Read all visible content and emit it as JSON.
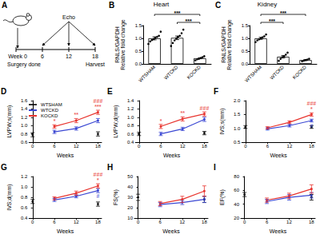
{
  "diagram": {
    "label": "A",
    "week_label": "Week",
    "ticks": [
      "0",
      "6",
      "12",
      "18"
    ],
    "echo": "Echo",
    "start_note": "Surgery done",
    "end_note": "Harvest"
  },
  "chart_data": [
    {
      "label": "B",
      "type": "bar",
      "title": "Heart",
      "ylabel": [
        "RNLS/GAPDH",
        "Relative fold change"
      ],
      "categories": [
        "WTSHAM",
        "WTCKD",
        "KOCKD"
      ],
      "values": [
        1.0,
        1.02,
        0.22
      ],
      "errors": [
        0.06,
        0.07,
        0.02
      ],
      "points": [
        [
          0.78,
          0.88,
          0.93,
          0.97,
          1.02,
          1.06,
          1.1,
          1.26
        ],
        [
          0.7,
          0.82,
          0.92,
          1.0,
          1.06,
          1.1,
          1.2,
          1.34
        ],
        [
          0.14,
          0.18,
          0.2,
          0.23,
          0.26,
          0.3
        ]
      ],
      "colors": [
        "#ffffff",
        "#ffffff",
        "#ffffff"
      ],
      "ylim": [
        0,
        1.5
      ],
      "yticks": [
        {
          "value": 0,
          "label": "0.0"
        },
        0.5,
        {
          "value": 1,
          "label": "1.0"
        },
        1.5
      ],
      "grid": false,
      "comparisons": [
        {
          "from": "WTSHAM",
          "to": "KOCKD",
          "label": "***"
        },
        {
          "from": "WTCKD",
          "to": "KOCKD",
          "label": "***"
        }
      ]
    },
    {
      "label": "C",
      "type": "bar",
      "title": "Kidney",
      "ylabel": [
        "RNLS/GAPDH",
        "Relative fold change"
      ],
      "categories": [
        "WTSHAM",
        "WTCKD",
        "KOCKD"
      ],
      "values": [
        1.0,
        0.28,
        0.15
      ],
      "errors": [
        0.04,
        0.05,
        0.02
      ],
      "points": [
        [
          0.85,
          0.92,
          0.96,
          1.0,
          1.04,
          1.08,
          1.15
        ],
        [
          0.12,
          0.2,
          0.26,
          0.3,
          0.36,
          0.44
        ],
        [
          0.1,
          0.13,
          0.15,
          0.17,
          0.2
        ]
      ],
      "colors": [
        "#ffffff",
        "#ffffff",
        "#ffffff"
      ],
      "ylim": [
        0,
        1.5
      ],
      "yticks": [
        {
          "value": 0,
          "label": "0.0"
        },
        0.5,
        {
          "value": 1,
          "label": "1.0"
        },
        1.5
      ],
      "grid": false,
      "comparisons": [
        {
          "from": "WTSHAM",
          "to": "KOCKD",
          "label": "***"
        },
        {
          "from": "WTSHAM",
          "to": "WTCKD",
          "label": "***"
        }
      ]
    },
    {
      "label": "D",
      "type": "line",
      "xlabel": "Weeks",
      "ylabel": "LVPW;s(mm)",
      "x": [
        0,
        6,
        12,
        18
      ],
      "xlim": [
        -1,
        19
      ],
      "xticks": [
        0,
        6,
        12,
        18
      ],
      "ylim": [
        0.6,
        1.6
      ],
      "yticks": [
        0.6,
        0.8,
        {
          "value": 1,
          "label": "1.0"
        },
        1.2,
        1.4,
        1.6
      ],
      "grid": false,
      "legend": "upper left",
      "series": [
        {
          "name": "WTSHAM",
          "color": "#000000",
          "type": "scatter",
          "values": [
            0.78,
            null,
            null,
            0.8
          ],
          "errors": [
            0.05,
            null,
            null,
            0.05
          ]
        },
        {
          "name": "WTCKD",
          "color": "#3b48d3",
          "values": [
            null,
            0.85,
            0.93,
            1.12
          ],
          "errors": [
            null,
            0.04,
            0.04,
            0.05
          ]
        },
        {
          "name": "KOCKD",
          "color": "#e8342e",
          "values": [
            null,
            0.98,
            1.12,
            1.32
          ],
          "errors": [
            null,
            0.04,
            0.05,
            0.05
          ]
        }
      ],
      "annotations": [
        {
          "series": "KOCKD",
          "x": 6,
          "text": "*"
        },
        {
          "series": "KOCKD",
          "x": 12,
          "text": "**"
        },
        {
          "series": "KOCKD",
          "x": 18,
          "text": "***"
        },
        {
          "series": "KOCKD",
          "x": 18,
          "text": "###"
        }
      ]
    },
    {
      "label": "E",
      "type": "line",
      "xlabel": "Weeks",
      "ylabel": "LVPW;d(mm)",
      "x": [
        0,
        6,
        12,
        18
      ],
      "xlim": [
        -1,
        19
      ],
      "xticks": [
        0,
        6,
        12,
        18
      ],
      "ylim": [
        0.4,
        1.4
      ],
      "yticks": [
        0.4,
        0.6,
        0.8,
        {
          "value": 1,
          "label": "1.0"
        },
        1.2,
        1.4
      ],
      "grid": false,
      "series": [
        {
          "name": "WTSHAM",
          "color": "#000000",
          "type": "scatter",
          "values": [
            0.6,
            null,
            null,
            0.62
          ],
          "errors": [
            0.04,
            null,
            null,
            0.04
          ]
        },
        {
          "name": "WTCKD",
          "color": "#3b48d3",
          "values": [
            null,
            0.6,
            0.72,
            0.95
          ],
          "errors": [
            null,
            0.04,
            0.04,
            0.05
          ]
        },
        {
          "name": "KOCKD",
          "color": "#e8342e",
          "values": [
            null,
            0.78,
            0.96,
            1.08
          ],
          "errors": [
            null,
            0.05,
            0.05,
            0.05
          ]
        }
      ],
      "annotations": [
        {
          "series": "KOCKD",
          "x": 6,
          "text": "*"
        },
        {
          "series": "KOCKD",
          "x": 12,
          "text": "**"
        },
        {
          "series": "KOCKD",
          "x": 18,
          "text": "###"
        }
      ]
    },
    {
      "label": "F",
      "type": "line",
      "xlabel": "Weeks",
      "ylabel": "IVS;s(mm)",
      "x": [
        0,
        6,
        12,
        18
      ],
      "xlim": [
        -1,
        19
      ],
      "xticks": [
        0,
        6,
        12,
        18
      ],
      "ylim": [
        0.5,
        2.0
      ],
      "yticks": [
        0.5,
        {
          "value": 1,
          "label": "1.0"
        },
        1.5,
        {
          "value": 2,
          "label": "2.0"
        }
      ],
      "grid": false,
      "series": [
        {
          "name": "WTSHAM",
          "color": "#000000",
          "type": "scatter",
          "values": [
            1.05,
            null,
            null,
            1.05
          ],
          "errors": [
            0.05,
            null,
            null,
            0.05
          ]
        },
        {
          "name": "WTCKD",
          "color": "#3b48d3",
          "values": [
            null,
            0.98,
            1.1,
            1.28
          ],
          "errors": [
            null,
            0.04,
            0.05,
            0.05
          ]
        },
        {
          "name": "KOCKD",
          "color": "#e8342e",
          "values": [
            null,
            1.02,
            1.22,
            1.5
          ],
          "errors": [
            null,
            0.04,
            0.05,
            0.06
          ]
        }
      ],
      "annotations": [
        {
          "series": "KOCKD",
          "x": 18,
          "text": "*"
        },
        {
          "series": "KOCKD",
          "x": 18,
          "text": "###"
        },
        {
          "series": "WTCKD",
          "x": 18,
          "text": "#"
        }
      ]
    },
    {
      "label": "G",
      "type": "line",
      "xlabel": "Weeks",
      "ylabel": "IVS;d(mm)",
      "x": [
        0,
        6,
        12,
        18
      ],
      "xlim": [
        -1,
        19
      ],
      "xticks": [
        0,
        6,
        12,
        18
      ],
      "ylim": [
        0.4,
        1.2
      ],
      "yticks": [
        0.4,
        0.6,
        0.8,
        {
          "value": 1,
          "label": "1.0"
        },
        1.2
      ],
      "grid": false,
      "series": [
        {
          "name": "WTSHAM",
          "color": "#000000",
          "type": "scatter",
          "values": [
            0.72,
            null,
            null,
            0.67
          ],
          "errors": [
            0.04,
            null,
            null,
            0.04
          ]
        },
        {
          "name": "WTCKD",
          "color": "#3b48d3",
          "values": [
            null,
            0.75,
            0.82,
            0.93
          ],
          "errors": [
            null,
            0.03,
            0.03,
            0.04
          ]
        },
        {
          "name": "KOCKD",
          "color": "#e8342e",
          "values": [
            null,
            0.78,
            0.88,
            1.02
          ],
          "errors": [
            null,
            0.03,
            0.04,
            0.04
          ]
        }
      ],
      "annotations": [
        {
          "series": "KOCKD",
          "x": 18,
          "text": "*"
        },
        {
          "series": "KOCKD",
          "x": 18,
          "text": "###"
        },
        {
          "series": "WTCKD",
          "x": 18,
          "text": "#"
        }
      ]
    },
    {
      "label": "H",
      "type": "line",
      "xlabel": "Weeks",
      "ylabel": "FS(%)",
      "x": [
        0,
        6,
        12,
        18
      ],
      "xlim": [
        -1,
        19
      ],
      "xticks": [
        0,
        6,
        12,
        18
      ],
      "ylim": [
        10,
        50
      ],
      "yticks": [
        10,
        20,
        30,
        40,
        50
      ],
      "grid": false,
      "series": [
        {
          "name": "WTSHAM",
          "color": "#000000",
          "type": "scatter",
          "values": [
            30,
            null,
            null,
            28
          ],
          "errors": [
            3,
            null,
            null,
            3
          ]
        },
        {
          "name": "WTCKD",
          "color": "#3b48d3",
          "values": [
            null,
            23,
            25,
            28
          ],
          "errors": [
            null,
            2,
            2,
            3
          ]
        },
        {
          "name": "KOCKD",
          "color": "#e8342e",
          "values": [
            null,
            24,
            28,
            36
          ],
          "errors": [
            null,
            2,
            3,
            5
          ]
        }
      ]
    },
    {
      "label": "I",
      "type": "line",
      "xlabel": "Weeks",
      "ylabel": "EF(%)",
      "x": [
        0,
        6,
        12,
        18
      ],
      "xlim": [
        -1,
        19
      ],
      "xticks": [
        0,
        6,
        12,
        18
      ],
      "ylim": [
        20,
        80
      ],
      "yticks": [
        20,
        40,
        60,
        80
      ],
      "grid": false,
      "series": [
        {
          "name": "WTSHAM",
          "color": "#000000",
          "type": "scatter",
          "values": [
            54,
            null,
            null,
            50
          ],
          "errors": [
            3,
            null,
            null,
            4
          ]
        },
        {
          "name": "WTCKD",
          "color": "#3b48d3",
          "values": [
            null,
            44,
            50,
            53
          ],
          "errors": [
            null,
            3,
            4,
            4
          ]
        },
        {
          "name": "KOCKD",
          "color": "#e8342e",
          "values": [
            null,
            46,
            52,
            62
          ],
          "errors": [
            null,
            3,
            4,
            6
          ]
        }
      ]
    }
  ]
}
